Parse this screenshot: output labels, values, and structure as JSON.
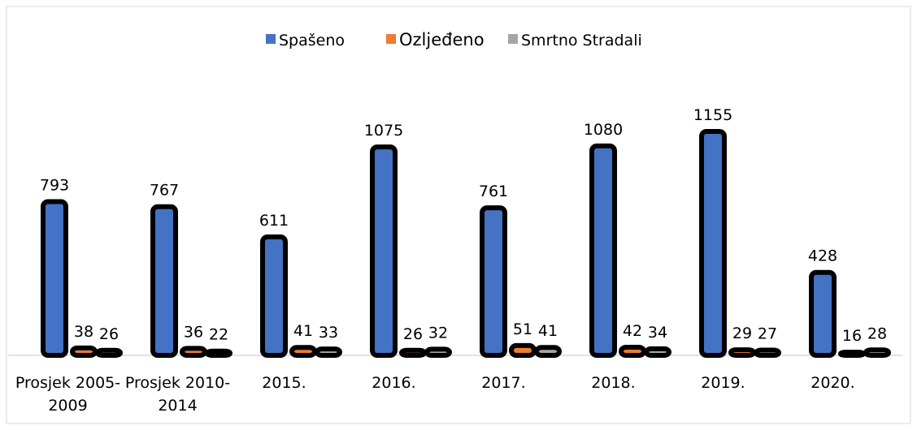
{
  "chart_data": {
    "type": "bar",
    "categories": [
      "Prosjek 2005-2009",
      "Prosjek 2010-2014",
      "2015.",
      "2016.",
      "2017.",
      "2018.",
      "2019.",
      "2020."
    ],
    "series": [
      {
        "name": "Spašeno",
        "color": "#4472c4",
        "values": [
          793,
          767,
          611,
          1075,
          761,
          1080,
          1155,
          428
        ]
      },
      {
        "name": "Ozljeđeno",
        "color": "#ed7d31",
        "values": [
          38,
          36,
          41,
          26,
          51,
          42,
          29,
          16
        ]
      },
      {
        "name": "Smrtno Stradali",
        "color": "#a5a5a5",
        "values": [
          26,
          22,
          33,
          32,
          41,
          34,
          27,
          28
        ]
      }
    ],
    "legend": "top"
  }
}
